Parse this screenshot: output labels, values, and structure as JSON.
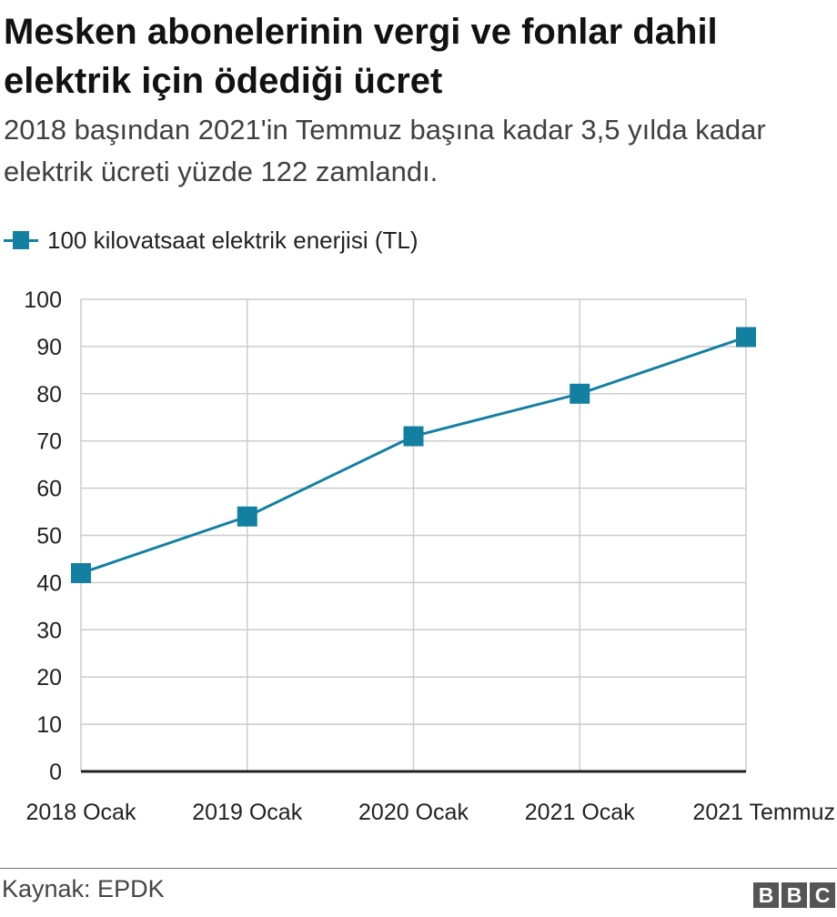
{
  "header": {
    "title": "Mesken abonelerinin vergi ve fonlar dahil elektrik için ödediği ücret",
    "subtitle": "2018 başından 2021'in Temmuz başına kadar 3,5 yılda kadar elektrik ücreti yüzde 122 zamlandı."
  },
  "legend": {
    "label": "100 kilovatsaat elektrik enerjisi (TL)"
  },
  "colors": {
    "series": "#1380a1",
    "grid": "#cccccc",
    "axis": "#222222"
  },
  "chart_data": {
    "type": "line",
    "title": "Mesken abonelerinin vergi ve fonlar dahil elektrik için ödediği ücret",
    "subtitle": "2018 başından 2021'in Temmuz başına kadar 3,5 yılda kadar elektrik ücreti yüzde 122 zamlandı.",
    "categories": [
      "2018 Ocak",
      "2019 Ocak",
      "2020 Ocak",
      "2021 Ocak",
      "2021 Temmuz"
    ],
    "series": [
      {
        "name": "100 kilovatsaat elektrik enerjisi (TL)",
        "values": [
          42,
          54,
          71,
          80,
          92
        ],
        "marker": "square"
      }
    ],
    "xlabel": "",
    "ylabel": "",
    "ylim": [
      0,
      100
    ],
    "yticks": [
      0,
      10,
      20,
      30,
      40,
      50,
      60,
      70,
      80,
      90,
      100
    ],
    "grid": true,
    "legend_position": "top-left"
  },
  "footer": {
    "source": "Kaynak: EPDK",
    "logo_letters": [
      "B",
      "B",
      "C"
    ]
  }
}
